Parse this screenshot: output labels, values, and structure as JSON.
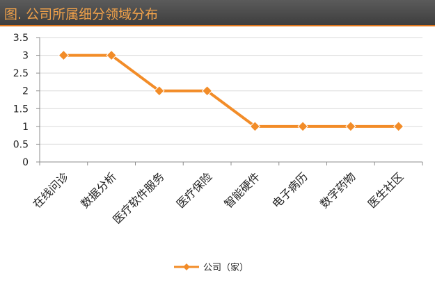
{
  "page": {
    "title": "图. 公司所属细分领域分布"
  },
  "colors": {
    "series": "#f28c28",
    "title_bar": "#4a4a4a",
    "title_text": "#f0a14a",
    "grid": "#d9d9d9"
  },
  "chart_data": {
    "type": "line",
    "title": "",
    "xlabel": "",
    "ylabel": "",
    "categories": [
      "在线问诊",
      "数据分析",
      "医疗软件服务",
      "医疗保险",
      "智能硬件",
      "电子病历",
      "数字药物",
      "医生社区"
    ],
    "series": [
      {
        "name": "公司（家）",
        "values": [
          3,
          3,
          2,
          2,
          1,
          1,
          1,
          1
        ]
      }
    ],
    "ylim": [
      0,
      3.5
    ],
    "yticks": [
      "0",
      "0.5",
      "1",
      "1.5",
      "2",
      "2.5",
      "3",
      "3.5"
    ],
    "grid": true,
    "legend": "bottom",
    "marker": "diamond"
  }
}
